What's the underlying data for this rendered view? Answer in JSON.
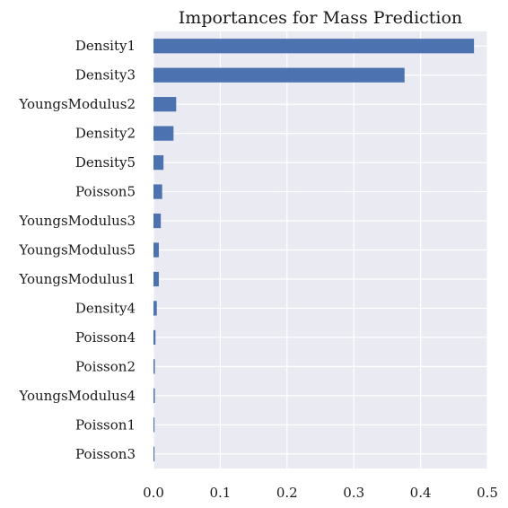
{
  "chart_data": {
    "type": "bar",
    "orientation": "horizontal",
    "title": "Importances for Mass Prediction",
    "xlabel": "",
    "ylabel": "",
    "categories": [
      "Density1",
      "Density3",
      "YoungsModulus2",
      "Density2",
      "Density5",
      "Poisson5",
      "YoungsModulus3",
      "YoungsModulus5",
      "YoungsModulus1",
      "Density4",
      "Poisson4",
      "Poisson2",
      "YoungsModulus4",
      "Poisson1",
      "Poisson3"
    ],
    "values": [
      0.48,
      0.376,
      0.034,
      0.03,
      0.015,
      0.013,
      0.011,
      0.008,
      0.008,
      0.005,
      0.003,
      0.002,
      0.002,
      0.0015,
      0.0015
    ],
    "xlim": [
      0,
      0.5
    ],
    "xticks": [
      0.0,
      0.1,
      0.2,
      0.3,
      0.4,
      0.5
    ],
    "xtick_labels": [
      "0.0",
      "0.1",
      "0.2",
      "0.3",
      "0.4",
      "0.5"
    ],
    "grid": true,
    "legend": "none",
    "colors": {
      "bar": "#4c72b0",
      "background": "#eaeaf2",
      "grid": "#ffffff"
    }
  }
}
